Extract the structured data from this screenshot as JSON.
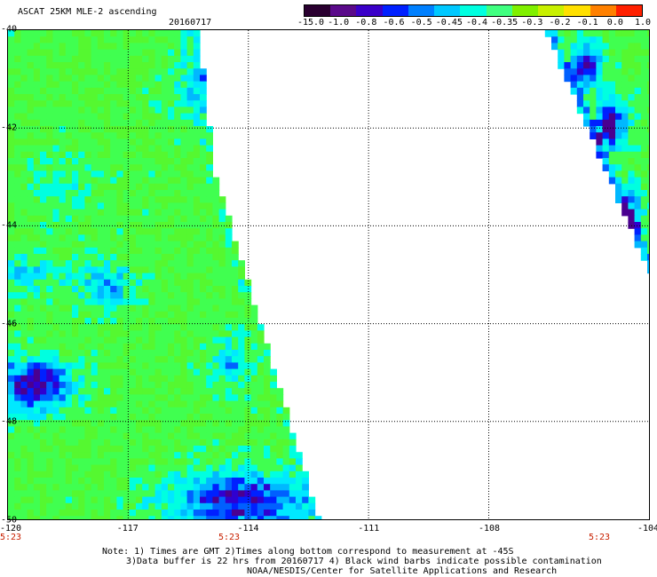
{
  "header": {
    "title": "ASCAT 25KM MLE-2 ascending",
    "date": "20160717"
  },
  "colorbar": {
    "labels": [
      "-15.0",
      "-1.0",
      "-0.8",
      "-0.6",
      "-0.5",
      "-0.45",
      "-0.4",
      "-0.35",
      "-0.3",
      "-0.2",
      "-0.1",
      "0.0",
      "1.0"
    ],
    "colors": [
      "#2a0030",
      "#5a0a8a",
      "#3a00c8",
      "#0020ff",
      "#0080ff",
      "#00c8ff",
      "#00ffe0",
      "#40ff80",
      "#80f000",
      "#c8f000",
      "#ffe000",
      "#ff8000",
      "#ff2000"
    ]
  },
  "map": {
    "lat_range": [
      -50,
      -40
    ],
    "lon_range": [
      -120,
      -104
    ],
    "lat_labels": [
      "-40",
      "-42",
      "-44",
      "-46",
      "-48",
      "-50"
    ],
    "lon_labels": [
      "-120",
      "-117",
      "-114",
      "-111",
      "-108",
      "-104"
    ],
    "time_labels": [
      "5:23",
      "5:23",
      "5:23"
    ]
  },
  "notes": {
    "line1": "Note: 1) Times are GMT 2)Times along bottom correspond to measurement at -45S",
    "line2": "3)Data buffer is 22 hrs from 20160717 4) Black wind barbs indicate possible contamination",
    "line3": "NOAA/NESDIS/Center for Satellite Applications and Research"
  }
}
